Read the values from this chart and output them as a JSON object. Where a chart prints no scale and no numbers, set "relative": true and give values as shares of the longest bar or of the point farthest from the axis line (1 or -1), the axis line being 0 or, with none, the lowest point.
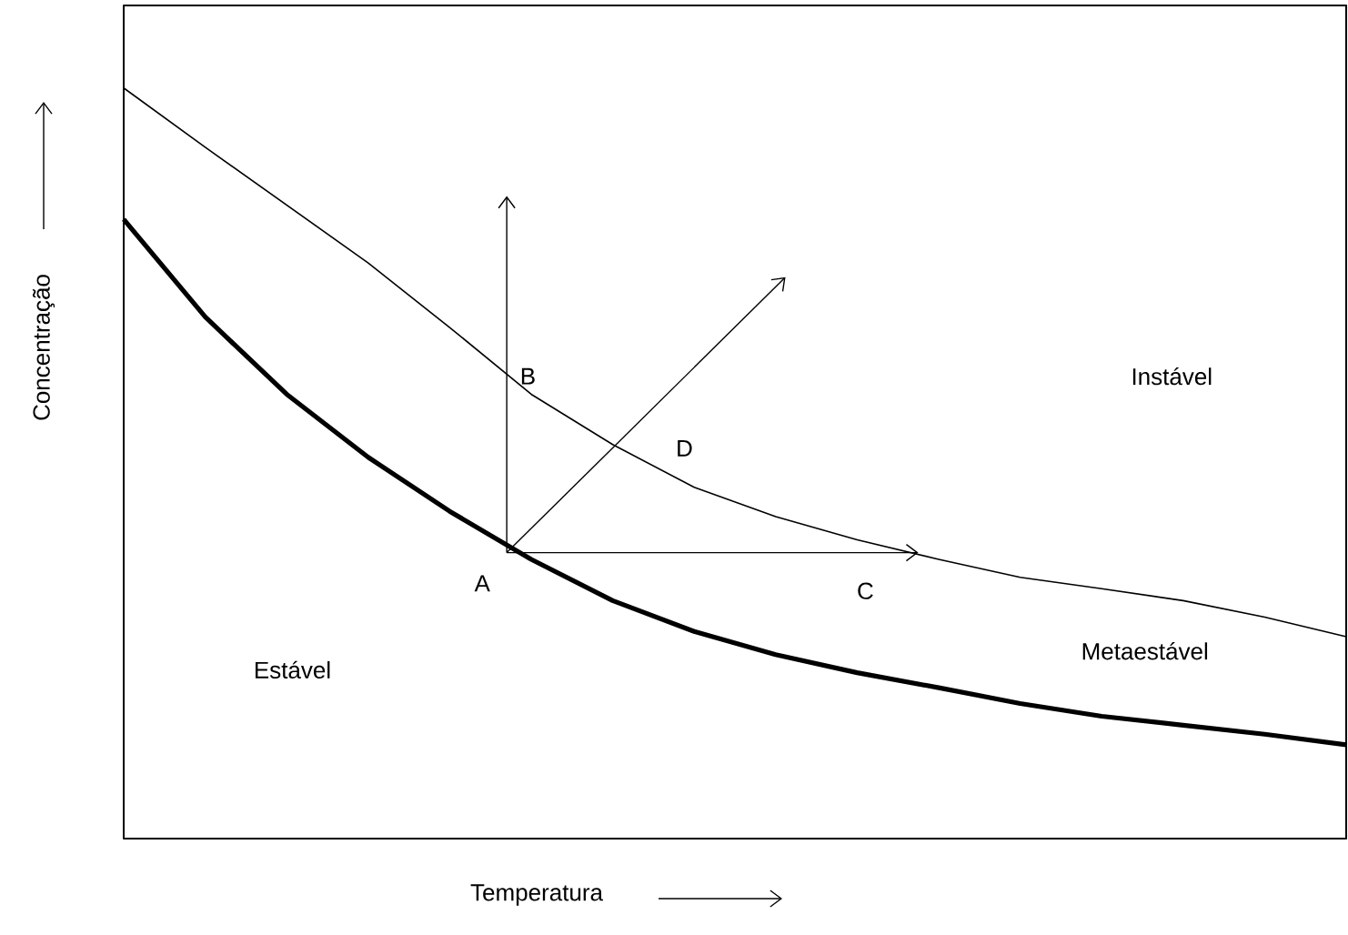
{
  "chart_data": {
    "type": "line",
    "relative": true,
    "xlabel": "Temperatura",
    "ylabel": "Concentração",
    "categories": [
      null,
      null,
      null,
      null,
      null,
      null,
      null,
      null,
      null,
      null,
      null,
      null,
      null,
      null,
      null,
      null
    ],
    "series": [
      {
        "color": "#000000",
        "values": [
          1.0,
          0.921,
          0.844,
          0.767,
          0.681,
          0.592,
          0.525,
          0.468,
          0.429,
          0.398,
          0.372,
          0.348,
          0.333,
          0.317,
          0.295,
          0.269
        ]
      },
      {
        "color": "#000000",
        "values": [
          0.825,
          0.695,
          0.592,
          0.508,
          0.436,
          0.372,
          0.317,
          0.276,
          0.245,
          0.221,
          0.201,
          0.18,
          0.163,
          0.151,
          0.139,
          0.125
        ]
      }
    ],
    "annotations": [
      "B",
      "D",
      "A",
      "C",
      "Instável",
      "Estável",
      "Metaestável"
    ]
  }
}
